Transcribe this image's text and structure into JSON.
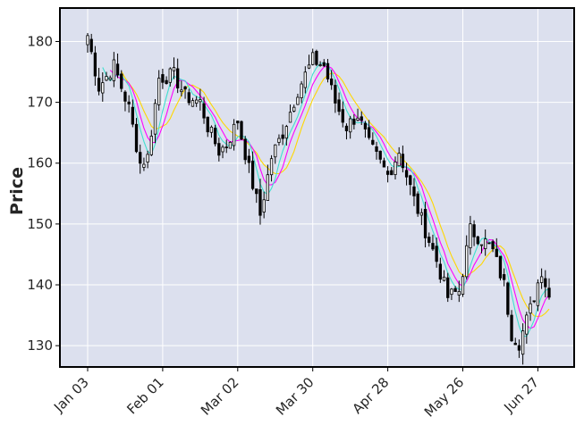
{
  "chart_data": {
    "type": "candlestick",
    "ylabel": "Price",
    "ylim": [
      126.5,
      185.5
    ],
    "yticks": [
      130,
      140,
      150,
      160,
      170,
      180
    ],
    "grid": true,
    "colors": {
      "background": "#dce0ee",
      "grid": "#ffffff",
      "candle": "#000000",
      "mav_short": "#40e0d0",
      "mav_mid": "#ff00ff",
      "mav_long": "#ffd700"
    },
    "xticks": [
      {
        "index": 0,
        "label": "Jan 03"
      },
      {
        "index": 20,
        "label": "Feb 01"
      },
      {
        "index": 40,
        "label": "Mar 02"
      },
      {
        "index": 60,
        "label": "Mar 30"
      },
      {
        "index": 80,
        "label": "Apr 28"
      },
      {
        "index": 100,
        "label": "May 26"
      },
      {
        "index": 120,
        "label": "Jun 27"
      }
    ],
    "close_path": [
      {
        "i": 0,
        "v": 181
      },
      {
        "i": 3,
        "v": 172.5
      },
      {
        "i": 7,
        "v": 176
      },
      {
        "i": 11,
        "v": 169
      },
      {
        "i": 14,
        "v": 160
      },
      {
        "i": 16,
        "v": 161
      },
      {
        "i": 19,
        "v": 174
      },
      {
        "i": 23,
        "v": 174.5
      },
      {
        "i": 26,
        "v": 171
      },
      {
        "i": 30,
        "v": 170
      },
      {
        "i": 32,
        "v": 166
      },
      {
        "i": 35,
        "v": 162
      },
      {
        "i": 37,
        "v": 163
      },
      {
        "i": 40,
        "v": 167
      },
      {
        "i": 43,
        "v": 159
      },
      {
        "i": 46,
        "v": 151.5
      },
      {
        "i": 49,
        "v": 161
      },
      {
        "i": 52,
        "v": 165
      },
      {
        "i": 56,
        "v": 172
      },
      {
        "i": 60,
        "v": 177
      },
      {
        "i": 63,
        "v": 176
      },
      {
        "i": 66,
        "v": 170
      },
      {
        "i": 69,
        "v": 166
      },
      {
        "i": 72,
        "v": 168
      },
      {
        "i": 75,
        "v": 163
      },
      {
        "i": 78,
        "v": 160
      },
      {
        "i": 80,
        "v": 158
      },
      {
        "i": 83,
        "v": 162
      },
      {
        "i": 87,
        "v": 154
      },
      {
        "i": 90,
        "v": 149
      },
      {
        "i": 93,
        "v": 144
      },
      {
        "i": 96,
        "v": 138
      },
      {
        "i": 99,
        "v": 139
      },
      {
        "i": 102,
        "v": 149
      },
      {
        "i": 106,
        "v": 147
      },
      {
        "i": 108,
        "v": 145.5
      },
      {
        "i": 111,
        "v": 140
      },
      {
        "i": 113,
        "v": 132
      },
      {
        "i": 115,
        "v": 130.5
      },
      {
        "i": 118,
        "v": 136
      },
      {
        "i": 121,
        "v": 142.5
      },
      {
        "i": 123,
        "v": 138
      }
    ]
  }
}
